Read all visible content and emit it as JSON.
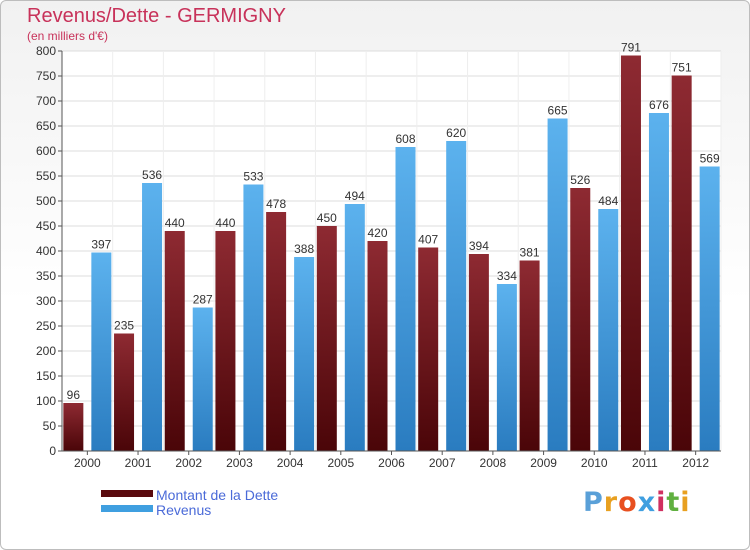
{
  "chart_data": {
    "type": "bar",
    "title": "Revenus/Dette - GERMIGNY",
    "subtitle": "(en milliers d'€)",
    "xlabel": "",
    "ylabel": "",
    "ylim": [
      0,
      800
    ],
    "yticks": [
      0,
      50,
      100,
      150,
      200,
      250,
      300,
      350,
      400,
      450,
      500,
      550,
      600,
      650,
      700,
      750,
      800
    ],
    "grid": true,
    "legend_position": "bottom-left",
    "categories": [
      "2000",
      "2001",
      "2002",
      "2003",
      "2004",
      "2005",
      "2006",
      "2007",
      "2008",
      "2009",
      "2010",
      "2011",
      "2012"
    ],
    "series": [
      {
        "name": "Montant de la Dette",
        "color": "#8a1e26",
        "values": [
          96,
          235,
          440,
          440,
          478,
          450,
          420,
          407,
          394,
          381,
          526,
          791,
          751
        ]
      },
      {
        "name": "Revenus",
        "color": "#3f9fe0",
        "values": [
          397,
          536,
          287,
          533,
          388,
          494,
          608,
          620,
          334,
          665,
          484,
          676,
          569
        ]
      }
    ]
  },
  "logo": {
    "text": "Proxiti",
    "colors": [
      "#5aa0d8",
      "#e8a020",
      "#e85020",
      "#3f9fe0",
      "#d03060",
      "#60b040",
      "#e8a020"
    ]
  }
}
